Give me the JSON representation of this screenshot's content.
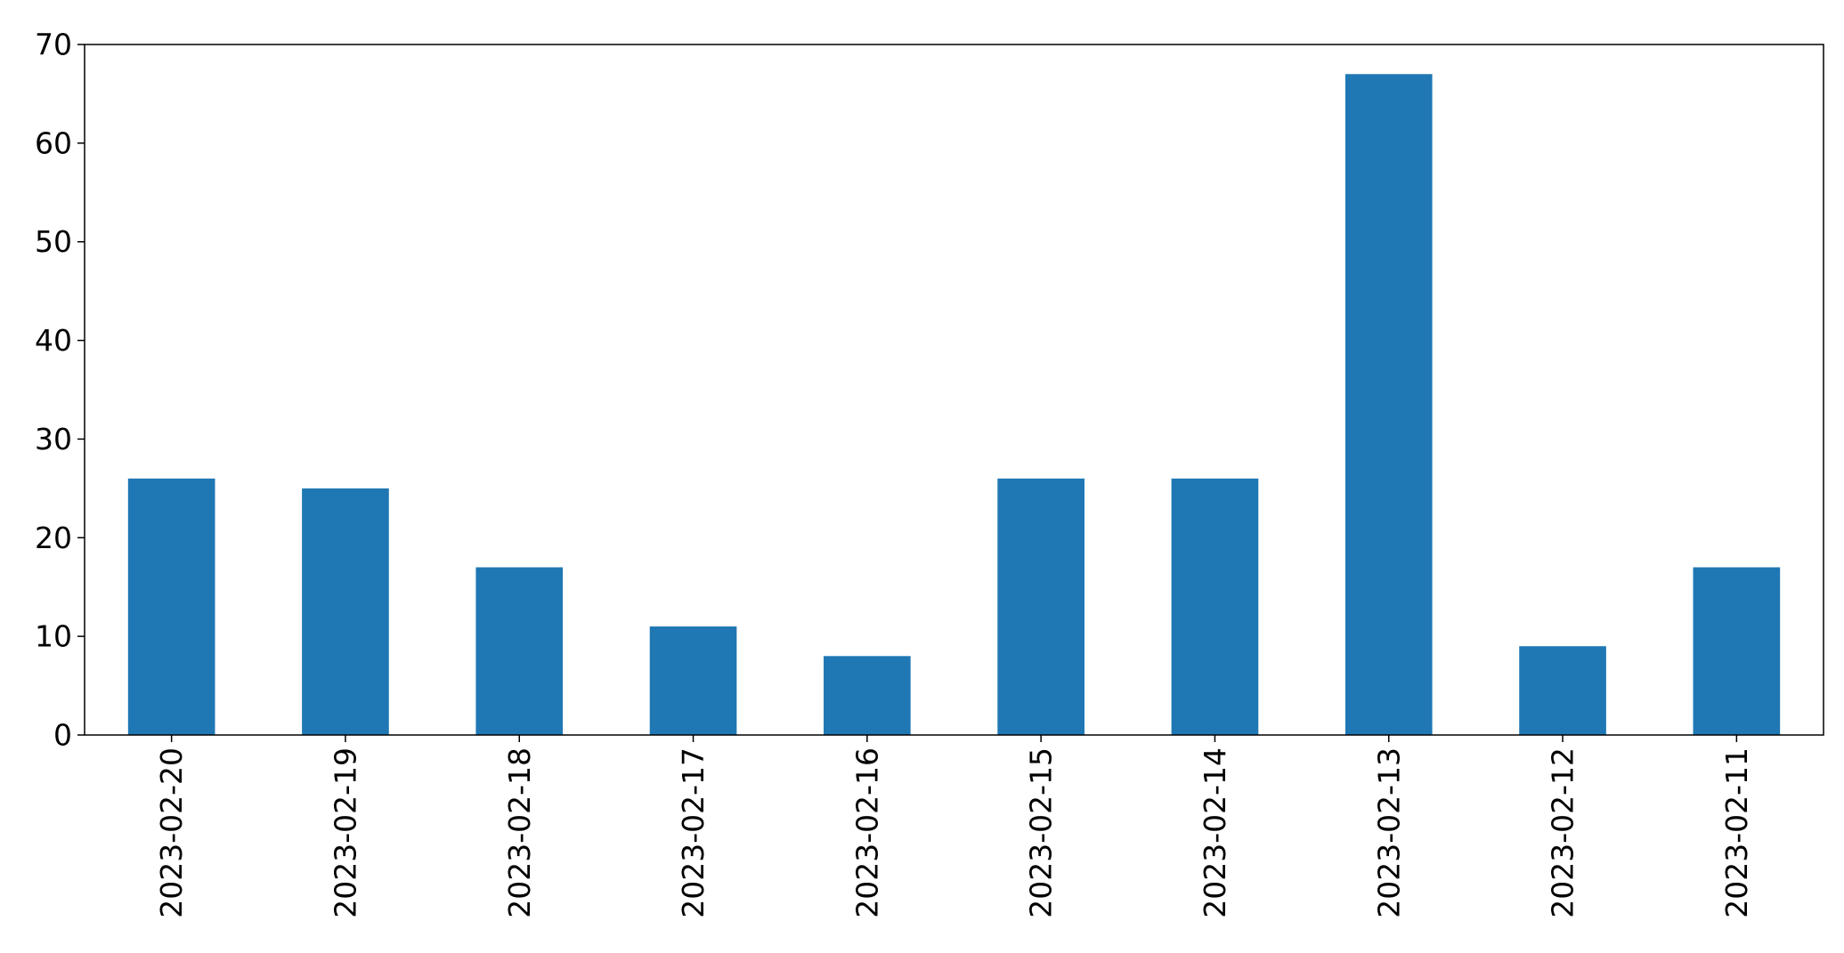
{
  "chart_data": {
    "type": "bar",
    "title": "",
    "xlabel": "",
    "ylabel": "",
    "categories": [
      "2023-02-20",
      "2023-02-19",
      "2023-02-18",
      "2023-02-17",
      "2023-02-16",
      "2023-02-15",
      "2023-02-14",
      "2023-02-13",
      "2023-02-12",
      "2023-02-11"
    ],
    "values": [
      26,
      25,
      17,
      11,
      8,
      26,
      26,
      67,
      9,
      17
    ],
    "ylim": [
      0,
      70
    ],
    "yticks": [
      "0",
      "10",
      "20",
      "30",
      "40",
      "50",
      "60",
      "70"
    ],
    "grid": false,
    "legend": "none",
    "bar_color": "#1f77b4"
  }
}
